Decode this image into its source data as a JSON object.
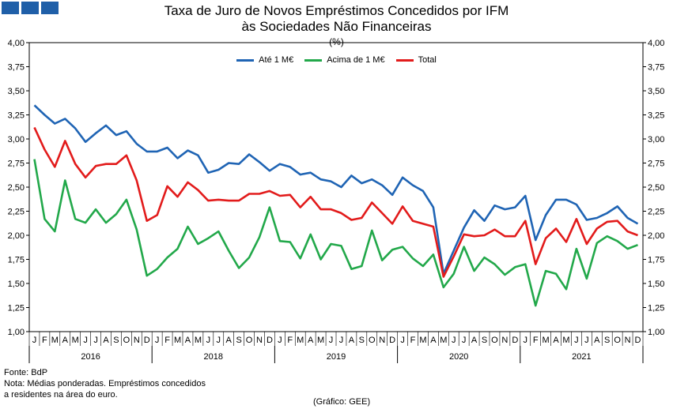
{
  "header": {
    "title_line1": "Taxa de Juro de Novos Empréstimos Concedidos por IFM",
    "title_line2": "às Sociedades Não Financeiras",
    "unit": "(%)"
  },
  "footer": {
    "source": "Fonte: BdP",
    "note_line1": "Nota: Médias ponderadas. Empréstimos concedidos",
    "note_line2": "a residentes na área do euro.",
    "credit": "(Gráfico: GEE)"
  },
  "chart_data": {
    "type": "line",
    "title": "Taxa de Juro de Novos Empréstimos Concedidos por IFM às Sociedades Não Financeiras",
    "ylabel": "(%)",
    "ylim": [
      1.0,
      4.0
    ],
    "yticks": [
      "1,00",
      "1,25",
      "1,50",
      "1,75",
      "2,00",
      "2,25",
      "2,50",
      "2,75",
      "3,00",
      "3,25",
      "3,50",
      "3,75",
      "4,00"
    ],
    "month_labels": [
      "J",
      "F",
      "M",
      "A",
      "M",
      "J",
      "J",
      "A",
      "S",
      "O",
      "N",
      "D"
    ],
    "years": [
      "2016",
      "2018",
      "2019",
      "2020",
      "2021"
    ],
    "grid": false,
    "legend_position": "top-center",
    "series": [
      {
        "name": "Até 1 M€",
        "color": "#1f64b4",
        "values": [
          3.35,
          3.25,
          3.16,
          3.21,
          3.11,
          2.97,
          3.06,
          3.14,
          3.04,
          3.08,
          2.95,
          2.87,
          2.87,
          2.91,
          2.8,
          2.88,
          2.83,
          2.65,
          2.68,
          2.75,
          2.74,
          2.84,
          2.76,
          2.67,
          2.74,
          2.71,
          2.63,
          2.65,
          2.58,
          2.56,
          2.5,
          2.62,
          2.54,
          2.58,
          2.52,
          2.42,
          2.6,
          2.52,
          2.46,
          2.29,
          1.6,
          1.84,
          2.08,
          2.26,
          2.15,
          2.31,
          2.27,
          2.29,
          2.41,
          1.95,
          2.21,
          2.37,
          2.37,
          2.32,
          2.16,
          2.18,
          2.23,
          2.3,
          2.18,
          2.12
        ]
      },
      {
        "name": "Acima de 1 M€",
        "color": "#22a84a",
        "values": [
          2.79,
          2.17,
          2.04,
          2.57,
          2.17,
          2.13,
          2.27,
          2.13,
          2.22,
          2.37,
          2.06,
          1.58,
          1.65,
          1.77,
          1.86,
          2.09,
          1.91,
          1.97,
          2.04,
          1.84,
          1.66,
          1.77,
          1.98,
          2.29,
          1.94,
          1.93,
          1.76,
          2.01,
          1.75,
          1.91,
          1.89,
          1.65,
          1.68,
          2.05,
          1.74,
          1.85,
          1.88,
          1.76,
          1.68,
          1.8,
          1.46,
          1.6,
          1.88,
          1.63,
          1.77,
          1.7,
          1.59,
          1.67,
          1.7,
          1.27,
          1.63,
          1.6,
          1.44,
          1.86,
          1.55,
          1.92,
          1.99,
          1.94,
          1.86,
          1.9
        ]
      },
      {
        "name": "Total",
        "color": "#e21b1b",
        "values": [
          3.12,
          2.89,
          2.71,
          2.98,
          2.74,
          2.6,
          2.72,
          2.74,
          2.74,
          2.83,
          2.57,
          2.15,
          2.21,
          2.51,
          2.4,
          2.55,
          2.47,
          2.36,
          2.37,
          2.36,
          2.36,
          2.43,
          2.43,
          2.46,
          2.41,
          2.42,
          2.29,
          2.4,
          2.27,
          2.27,
          2.23,
          2.16,
          2.18,
          2.34,
          2.23,
          2.12,
          2.3,
          2.15,
          2.12,
          2.09,
          1.57,
          1.78,
          2.01,
          1.99,
          2.0,
          2.06,
          1.99,
          1.99,
          2.15,
          1.7,
          1.97,
          2.07,
          1.93,
          2.17,
          1.91,
          2.07,
          2.14,
          2.15,
          2.04,
          2.0
        ]
      }
    ]
  }
}
